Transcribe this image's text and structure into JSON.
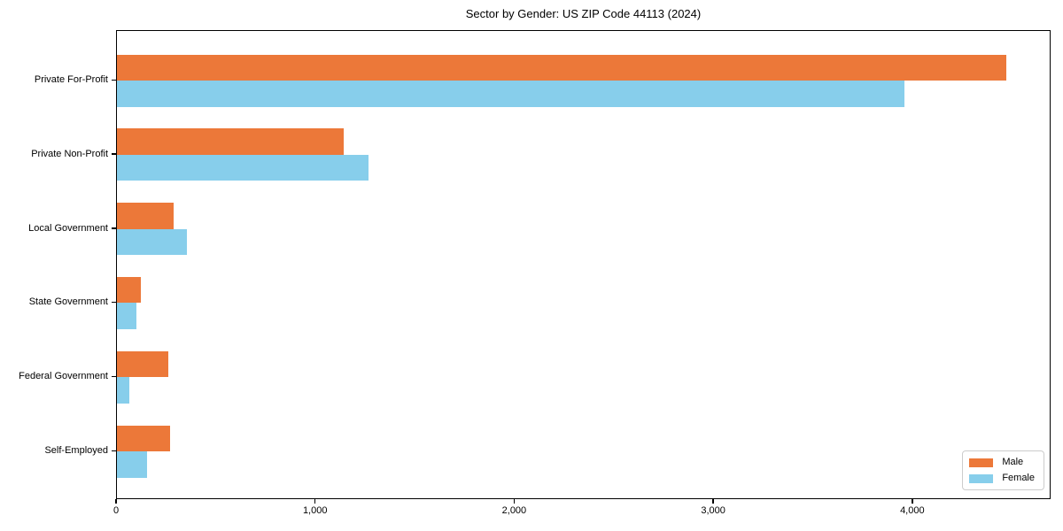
{
  "chart_data": {
    "type": "bar",
    "orientation": "horizontal",
    "title": "Sector by Gender: US ZIP Code 44113 (2024)",
    "categories": [
      "Private For-Profit",
      "Private Non-Profit",
      "Local Government",
      "State Government",
      "Federal Government",
      "Self-Employed"
    ],
    "series": [
      {
        "name": "Male",
        "color": "#EC7839",
        "values": [
          4470,
          1140,
          285,
          120,
          260,
          265
        ]
      },
      {
        "name": "Female",
        "color": "#87CEEB",
        "values": [
          3955,
          1265,
          350,
          98,
          62,
          150
        ]
      }
    ],
    "xlabel": "",
    "ylabel": "",
    "xlim": [
      0,
      4695
    ],
    "xticks": [
      0,
      1000,
      2000,
      3000,
      4000
    ],
    "xtick_labels": [
      "0",
      "1,000",
      "2,000",
      "3,000",
      "4,000"
    ],
    "legend_position": "lower right",
    "grid": false,
    "background_color": "#ffffff",
    "spine_color": "#000000"
  }
}
